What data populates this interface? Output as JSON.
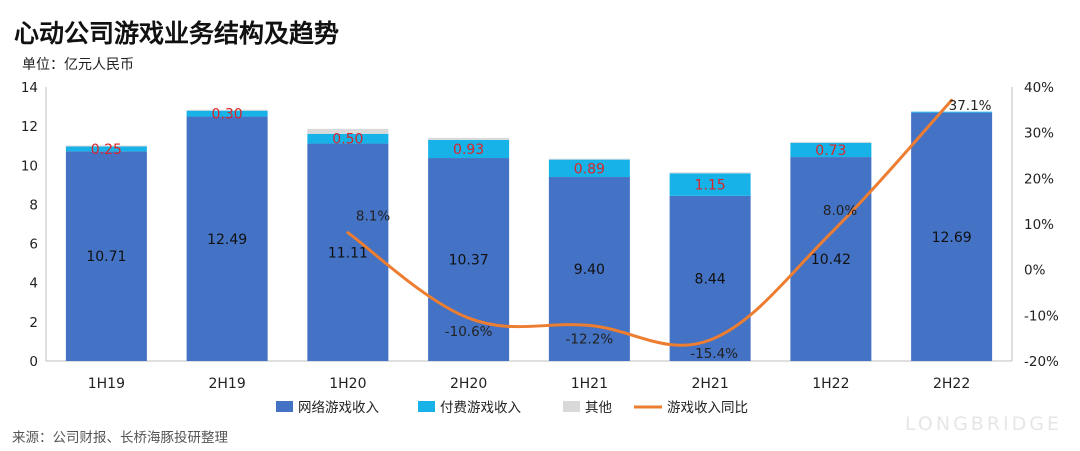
{
  "title": "心动公司游戏业务结构及趋势",
  "unit": "单位：亿元人民币",
  "source": "来源：公司财报、长桥海豚投研整理",
  "watermark": "LONGBRIDGE",
  "colors": {
    "online": "#4472c4",
    "paid": "#17b3e8",
    "other": "#d9d9d9",
    "yoy": "#ed7d31",
    "paid_label": "#d9252a"
  },
  "chart_data": {
    "type": "bar",
    "stacked": true,
    "categories": [
      "1H19",
      "2H19",
      "1H20",
      "2H20",
      "1H21",
      "2H21",
      "1H22",
      "2H22"
    ],
    "series": [
      {
        "name": "网络游戏收入",
        "values": [
          10.71,
          12.49,
          11.11,
          10.37,
          9.4,
          8.44,
          10.42,
          12.69
        ],
        "labels": [
          "10.71",
          "12.49",
          "11.11",
          "10.37",
          "9.40",
          "8.44",
          "10.42",
          "12.69"
        ]
      },
      {
        "name": "付费游戏收入",
        "values": [
          0.25,
          0.3,
          0.5,
          0.93,
          0.89,
          1.15,
          0.73,
          0.05
        ],
        "labels": [
          "0.25",
          "0.30",
          "0.50",
          "0.93",
          "0.89",
          "1.15",
          "0.73",
          ""
        ]
      },
      {
        "name": "其他",
        "values": [
          0.05,
          0.05,
          0.25,
          0.1,
          0.05,
          0.05,
          0.05,
          0.0
        ],
        "labels": [
          "",
          "",
          "",
          "",
          "",
          "",
          "",
          ""
        ]
      }
    ],
    "line": {
      "name": "游戏收入同比",
      "values": [
        null,
        null,
        8.1,
        -10.6,
        -12.2,
        -15.4,
        8.0,
        37.1
      ],
      "labels": [
        "",
        "",
        "8.1%",
        "-10.6%",
        "-12.2%",
        "-15.4%",
        "8.0%",
        "37.1%"
      ]
    },
    "y_left": {
      "min": 0,
      "max": 14,
      "step": 2,
      "ticks": [
        "0",
        "2",
        "4",
        "6",
        "8",
        "10",
        "12",
        "14"
      ]
    },
    "y_right": {
      "min": -20,
      "max": 40,
      "step": 10,
      "ticks": [
        "-20%",
        "-10%",
        "0%",
        "10%",
        "20%",
        "30%",
        "40%"
      ]
    },
    "grid": false,
    "legend_position": "bottom"
  }
}
